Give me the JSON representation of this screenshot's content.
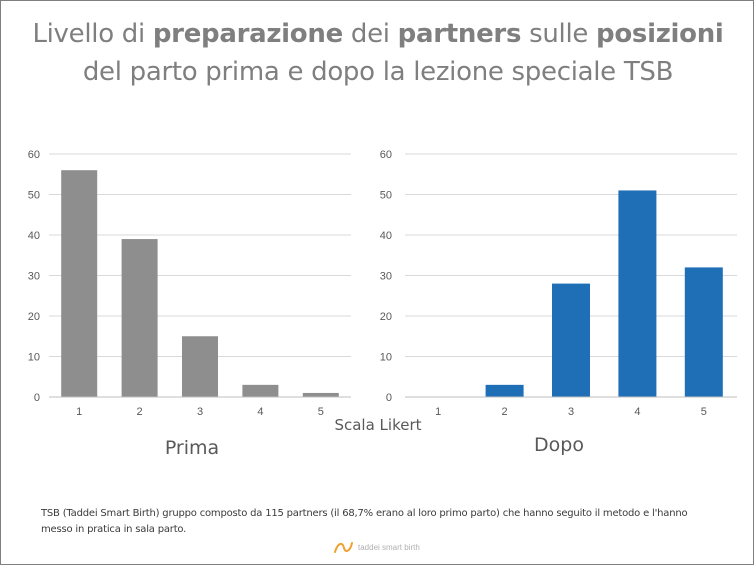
{
  "title": {
    "line1_a": "Livello di ",
    "line1_b": "preparazione",
    "line1_c": " dei ",
    "line1_d": "partners",
    "line1_e": " sulle ",
    "line1_f": "posizioni",
    "line2": "del parto prima e dopo la lezione speciale TSB"
  },
  "xlabel": "Scala Likert",
  "footnote": "TSB (Taddei Smart Birth) gruppo composto da 115 partners (il 68,7% erano al loro primo parto) che hanno seguito il metodo e l'hanno messo in pratica in sala parto.",
  "logo": {
    "text": "taddei smart birth",
    "icon": "logo-swirl-icon"
  },
  "colors": {
    "prima": "#8e8e8e",
    "dopo": "#1f6fb6",
    "grid": "#d9d9d9"
  },
  "chart_data": [
    {
      "type": "bar",
      "panel_label": "Prima",
      "categories": [
        "1",
        "2",
        "3",
        "4",
        "5"
      ],
      "values": [
        56,
        39,
        15,
        3,
        1
      ],
      "ylim": [
        0,
        60
      ],
      "yticks": [
        0,
        10,
        20,
        30,
        40,
        50,
        60
      ],
      "grid": true
    },
    {
      "type": "bar",
      "panel_label": "Dopo",
      "categories": [
        "1",
        "2",
        "3",
        "4",
        "5"
      ],
      "values": [
        0,
        3,
        28,
        51,
        32
      ],
      "ylim": [
        0,
        60
      ],
      "yticks": [
        0,
        10,
        20,
        30,
        40,
        50,
        60
      ],
      "grid": true
    }
  ]
}
